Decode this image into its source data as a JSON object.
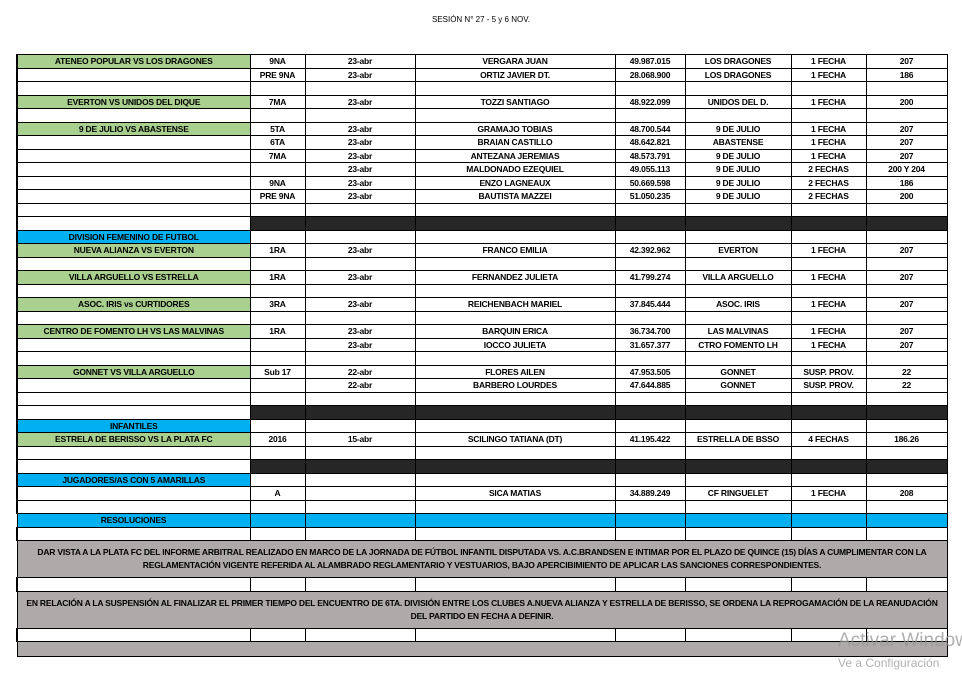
{
  "title": "SESIÓN N° 27 - 5 y 6 NOV.",
  "colors": {
    "match": "#a9d08e",
    "section": "#00b0f0",
    "separator": "#262626",
    "resolution": "#aeaaaa"
  },
  "rows": [
    {
      "kind": "data",
      "match": "ATENEO POPULAR VS LOS DRAGONES",
      "cat": "9NA",
      "date": "23-abr",
      "name": "VERGARA JUAN",
      "dni": "49.987.015",
      "club": "LOS DRAGONES",
      "sanction": "1 FECHA",
      "article": "207"
    },
    {
      "kind": "data",
      "match": "",
      "cat": "PRE 9NA",
      "date": "23-abr",
      "name": "ORTIZ JAVIER DT.",
      "dni": "28.068.900",
      "club": "LOS DRAGONES",
      "sanction": "1 FECHA",
      "article": "186"
    },
    {
      "kind": "blank"
    },
    {
      "kind": "data",
      "match": "EVERTON VS UNIDOS DEL DIQUE",
      "cat": "7MA",
      "date": "23-abr",
      "name": "TOZZI SANTIAGO",
      "dni": "48.922.099",
      "club": "UNIDOS DEL D.",
      "sanction": "1 FECHA",
      "article": "200"
    },
    {
      "kind": "blank"
    },
    {
      "kind": "data",
      "match": "9 DE JULIO VS ABASTENSE",
      "cat": "5TA",
      "date": "23-abr",
      "name": "GRAMAJO TOBIAS",
      "dni": "48.700.544",
      "club": "9 DE JULIO",
      "sanction": "1 FECHA",
      "article": "207"
    },
    {
      "kind": "data",
      "match": "",
      "cat": "6TA",
      "date": "23-abr",
      "name": "BRAIAN CASTILLO",
      "dni": "48.642.821",
      "club": "ABASTENSE",
      "sanction": "1 FECHA",
      "article": "207"
    },
    {
      "kind": "data",
      "match": "",
      "cat": "7MA",
      "date": "23-abr",
      "name": "ANTEZANA JEREMIAS",
      "dni": "48.573.791",
      "club": "9 DE JULIO",
      "sanction": "1 FECHA",
      "article": "207"
    },
    {
      "kind": "data",
      "match": "",
      "cat": "",
      "date": "23-abr",
      "name": "MALDONADO EZEQUIEL",
      "dni": "49.055.113",
      "club": "9 DE JULIO",
      "sanction": "2 FECHAS",
      "article": "200 Y 204"
    },
    {
      "kind": "data",
      "match": "",
      "cat": "9NA",
      "date": "23-abr",
      "name": "ENZO LAGNEAUX",
      "dni": "50.669.598",
      "club": "9 DE JULIO",
      "sanction": "2 FECHAS",
      "article": "186"
    },
    {
      "kind": "data",
      "match": "",
      "cat": "PRE 9NA",
      "date": "23-abr",
      "name": "BAUTISTA MAZZEI",
      "dni": "51.050.235",
      "club": "9 DE JULIO",
      "sanction": "2 FECHAS",
      "article": "200"
    },
    {
      "kind": "blank"
    },
    {
      "kind": "dark"
    },
    {
      "kind": "section",
      "label": "DIVISION FEMENINO DE FUTBOL"
    },
    {
      "kind": "data",
      "match": "NUEVA ALIANZA VS EVERTON",
      "cat": "1RA",
      "date": "23-abr",
      "name": "FRANCO EMILIA",
      "dni": "42.392.962",
      "club": "EVERTON",
      "sanction": "1 FECHA",
      "article": "207"
    },
    {
      "kind": "blank"
    },
    {
      "kind": "data",
      "match": "VILLA ARGUELLO VS ESTRELLA",
      "cat": "1RA",
      "date": "23-abr",
      "name": "FERNANDEZ JULIETA",
      "dni": "41.799.274",
      "club": "VILLA ARGUELLO",
      "sanction": "1 FECHA",
      "article": "207"
    },
    {
      "kind": "blank"
    },
    {
      "kind": "data",
      "match": "ASOC. IRIS vs CURTIDORES",
      "cat": "3RA",
      "date": "23-abr",
      "name": "REICHENBACH MARIEL",
      "dni": "37.845.444",
      "club": "ASOC. IRIS",
      "sanction": "1 FECHA",
      "article": "207"
    },
    {
      "kind": "blank"
    },
    {
      "kind": "data",
      "match": "CENTRO DE FOMENTO LH VS LAS MALVINAS",
      "cat": "1RA",
      "date": "23-abr",
      "name": "BARQUIN ERICA",
      "dni": "36.734.700",
      "club": "LAS MALVINAS",
      "sanction": "1 FECHA",
      "article": "207"
    },
    {
      "kind": "data",
      "match": "",
      "cat": "",
      "date": "23-abr",
      "name": "IOCCO JULIETA",
      "dni": "31.657.377",
      "club": "CTRO FOMENTO LH",
      "sanction": "1 FECHA",
      "article": "207"
    },
    {
      "kind": "blank"
    },
    {
      "kind": "data",
      "match": "GONNET VS VILLA ARGUELLO",
      "cat": "Sub 17",
      "date": "22-abr",
      "name": "FLORES AILEN",
      "dni": "47.953.505",
      "club": "GONNET",
      "sanction": "SUSP. PROV.",
      "article": "22"
    },
    {
      "kind": "data",
      "match": "",
      "cat": "",
      "date": "22-abr",
      "name": "BARBERO LOURDES",
      "dni": "47.644.885",
      "club": "GONNET",
      "sanction": "SUSP. PROV.",
      "article": "22"
    },
    {
      "kind": "blank"
    },
    {
      "kind": "dark"
    },
    {
      "kind": "section",
      "label": "INFANTILES"
    },
    {
      "kind": "data",
      "match": "ESTRELA DE BERISSO VS LA PLATA FC",
      "cat": "2016",
      "date": "15-abr",
      "name": "SCILINGO TATIANA (DT)",
      "dni": "41.195.422",
      "club": "ESTRELLA DE BSSO",
      "sanction": "4 FECHAS",
      "article": "186.26"
    },
    {
      "kind": "blank"
    },
    {
      "kind": "dark"
    },
    {
      "kind": "section",
      "label": "JUGADORES/AS CON 5 AMARILLAS"
    },
    {
      "kind": "data",
      "match": "",
      "cat": "A",
      "date": "",
      "name": "SICA MATIAS",
      "dni": "34.889.249",
      "club": "CF RINGUELET",
      "sanction": "1 FECHA",
      "article": "208"
    },
    {
      "kind": "blank"
    },
    {
      "kind": "resolutions",
      "label": "RESOLUCIONES"
    },
    {
      "kind": "blank"
    },
    {
      "kind": "text",
      "text": "DAR VISTA A LA PLATA FC DEL INFORME ARBITRAL REALIZADO EN MARCO DE LA JORNADA DE FÚTBOL INFANTIL DISPUTADA VS. A.C.BRANDSEN E INTIMAR POR EL PLAZO DE QUINCE (15) DÍAS A CUMPLIMENTAR CON LA REGLAMENTACIÓN VIGENTE REFERIDA AL ALAMBRADO REGLAMENTARIO Y VESTUARIOS, BAJO APERCIBIMIENTO DE APLICAR LAS SANCIONES CORRESPONDIENTES."
    },
    {
      "kind": "blank"
    },
    {
      "kind": "text",
      "text": "EN RELACIÓN A LA SUSPENSIÓN AL FINALIZAR EL PRIMER TIEMPO DEL ENCUENTRO DE 6TA. DIVISIÓN ENTRE LOS CLUBES A.NUEVA ALIANZA Y ESTRELLA DE BERISSO, SE ORDENA LA REPROGAMACIÓN DE LA REANUDACIÓN DEL PARTIDO EN FECHA A DEFINIR."
    },
    {
      "kind": "blank"
    },
    {
      "kind": "partial"
    }
  ],
  "watermark": {
    "line1": "Activar Windows",
    "line2": "Ve a Configuración"
  }
}
